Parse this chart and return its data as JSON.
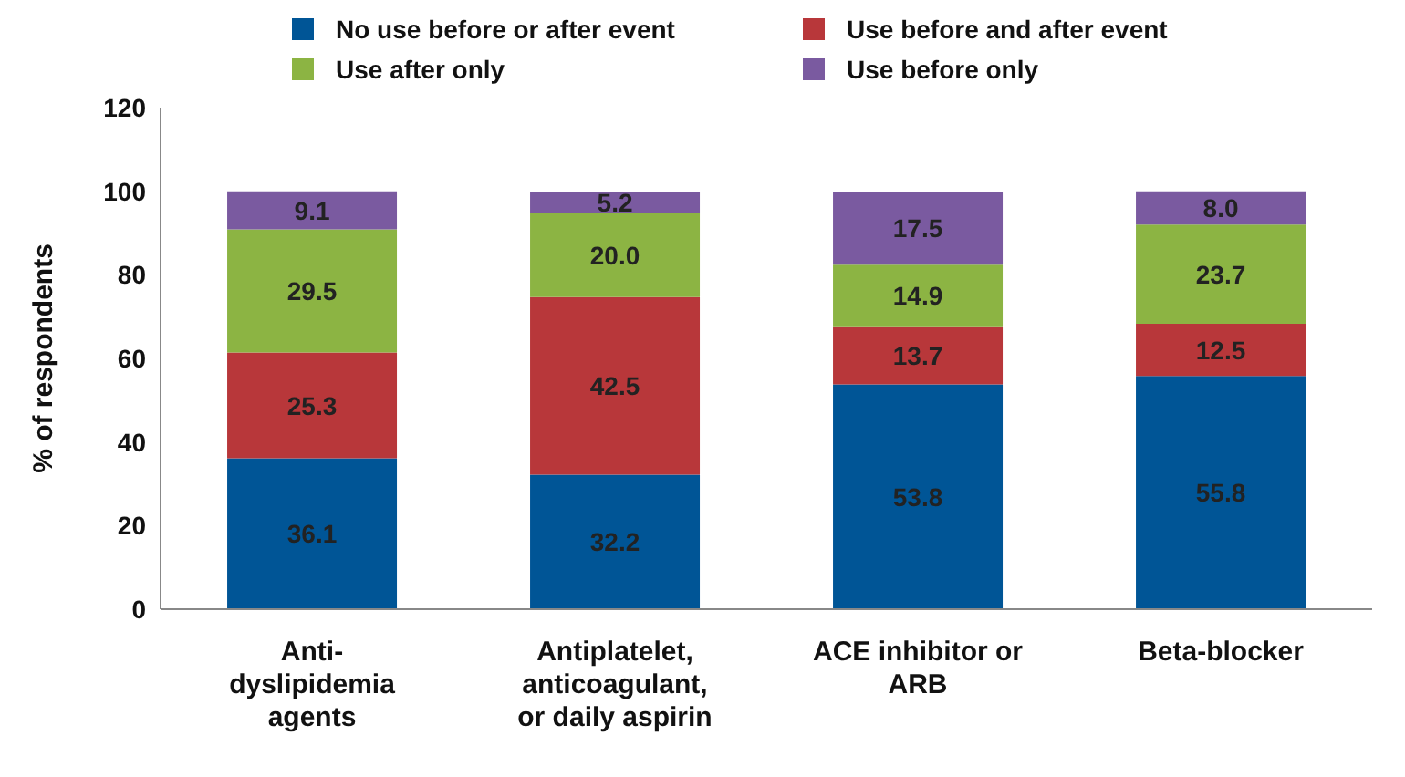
{
  "chart_data": {
    "type": "bar",
    "stacked": true,
    "ylabel": "% of respondents",
    "categories": [
      "Anti-dyslipidemia agents",
      "Antiplatelet, anticoagulant, or daily aspirin",
      "ACE inhibitor or ARB",
      "Beta-blocker"
    ],
    "series": [
      {
        "name": "No use before or after event",
        "color": "#005596",
        "values": [
          36.1,
          32.2,
          53.8,
          55.8
        ],
        "value_labels": [
          "36.1",
          "32.2",
          "53.8",
          "55.8"
        ]
      },
      {
        "name": "Use before and after event",
        "color": "#b8373a",
        "values": [
          25.3,
          42.5,
          13.7,
          12.5
        ],
        "value_labels": [
          "25.3",
          "42.5",
          "13.7",
          "12.5"
        ]
      },
      {
        "name": "Use after only",
        "color": "#8cb443",
        "values": [
          29.5,
          20.0,
          14.9,
          23.7
        ],
        "value_labels": [
          "29.5",
          "20.0",
          "14.9",
          "23.7"
        ]
      },
      {
        "name": "Use before only",
        "color": "#7a5aa0",
        "values": [
          9.1,
          5.2,
          17.5,
          8.0
        ],
        "value_labels": [
          "9.1",
          "5.2",
          "17.5",
          "8.0"
        ]
      }
    ],
    "ylim": [
      0,
      120
    ],
    "yticks": [
      0,
      20,
      40,
      60,
      80,
      100,
      120
    ],
    "grid": false,
    "legend": "top"
  }
}
